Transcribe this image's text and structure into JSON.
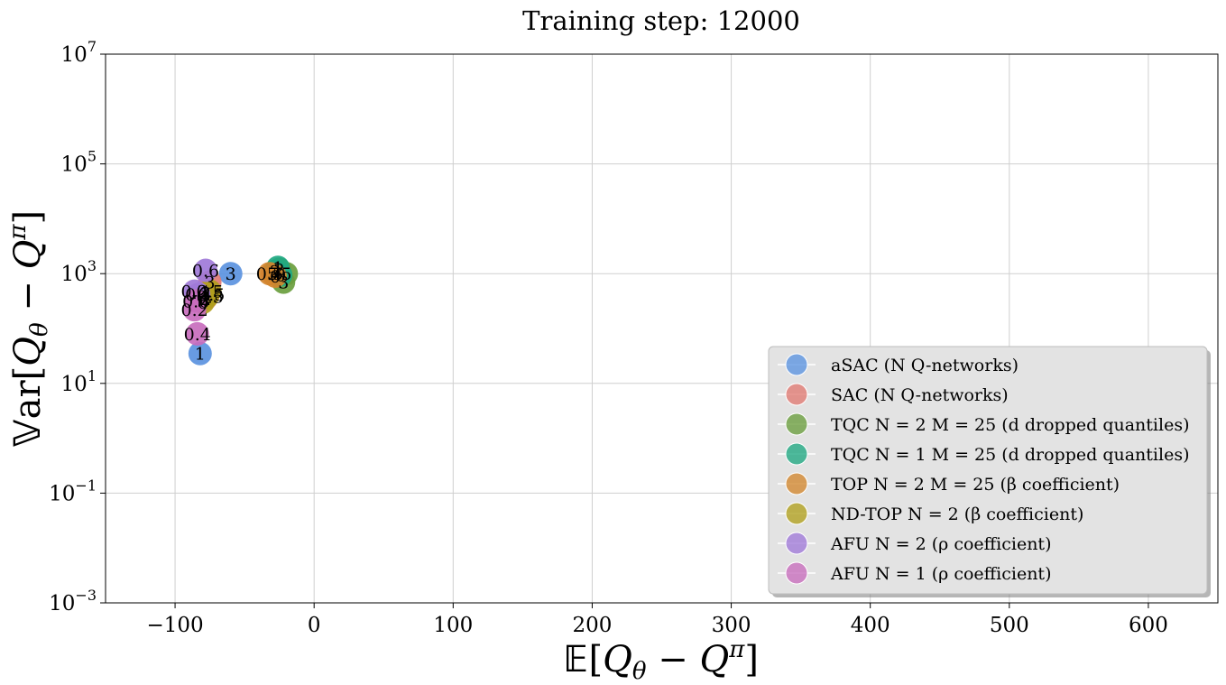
{
  "chart_data": {
    "type": "scatter",
    "title": "Training step: 12000",
    "xlabel": "𝔼[Q_θ − Q^π]",
    "ylabel": "𝕍ar[Q_θ − Q^π]",
    "xlim": [
      -150,
      650
    ],
    "ylim": [
      0.001,
      10000000
    ],
    "yscale": "log",
    "grid": true,
    "legend_position": "lower-right",
    "x_ticks": [
      -100,
      0,
      100,
      200,
      300,
      400,
      500,
      600
    ],
    "x_tick_labels": [
      "−100",
      "0",
      "100",
      "200",
      "300",
      "400",
      "500",
      "600"
    ],
    "y_ticks": [
      0.001,
      0.1,
      10,
      1000,
      100000,
      10000000
    ],
    "y_tick_base": [
      "10",
      "10",
      "10",
      "10",
      "10",
      "10"
    ],
    "y_tick_exp": [
      "−3",
      "−1",
      "1",
      "3",
      "5",
      "7"
    ],
    "series": [
      {
        "name": "aSAC (N Q-networks)",
        "color": "#5b93e0",
        "points": [
          {
            "x": -82,
            "y": 35,
            "label": "1"
          },
          {
            "x": -60,
            "y": 1000,
            "label": "3"
          },
          {
            "x": -78,
            "y": 450,
            "label": "2"
          }
        ]
      },
      {
        "name": "SAC (N Q-networks)",
        "color": "#e07a72",
        "points": [
          {
            "x": -75,
            "y": 700,
            "label": "3"
          },
          {
            "x": -78,
            "y": 350,
            "label": "2"
          },
          {
            "x": -30,
            "y": 1000,
            "label": "5"
          }
        ]
      },
      {
        "name": "TQC N = 2 M = 25 (d dropped quantiles)",
        "color": "#6a9e3e",
        "points": [
          {
            "x": -22,
            "y": 700,
            "label": "3"
          },
          {
            "x": -20,
            "y": 1000,
            "label": "5"
          },
          {
            "x": -25,
            "y": 1200,
            "label": "2"
          }
        ]
      },
      {
        "name": "TQC N = 1 M = 25 (d dropped quantiles)",
        "color": "#1fa882",
        "points": [
          {
            "x": -28,
            "y": 1100,
            "label": "2"
          },
          {
            "x": -24,
            "y": 950,
            "label": "0"
          },
          {
            "x": -26,
            "y": 1300,
            "label": "1"
          }
        ]
      },
      {
        "name": "TOP N = 2 M = 25 (β coefficient)",
        "color": "#d2862e",
        "points": [
          {
            "x": -32,
            "y": 1000,
            "label": "0.5"
          },
          {
            "x": -76,
            "y": 420,
            "label": "-0.5"
          },
          {
            "x": -28,
            "y": 900,
            "label": "0"
          }
        ]
      },
      {
        "name": "ND-TOP N = 2 (β coefficient)",
        "color": "#b1a01e",
        "points": [
          {
            "x": -75,
            "y": 480,
            "label": "0.5"
          },
          {
            "x": -80,
            "y": 300,
            "label": "0"
          },
          {
            "x": -77,
            "y": 380,
            "label": "-0.5"
          }
        ]
      },
      {
        "name": "AFU N = 2 (ρ coefficient)",
        "color": "#a07ad8",
        "points": [
          {
            "x": -78,
            "y": 1150,
            "label": "0.6"
          },
          {
            "x": -86,
            "y": 480,
            "label": "0.2"
          },
          {
            "x": -83,
            "y": 420,
            "label": "0.4"
          }
        ]
      },
      {
        "name": "AFU N = 1 (ρ coefficient)",
        "color": "#c86dbd",
        "points": [
          {
            "x": -84,
            "y": 80,
            "label": "0.4"
          },
          {
            "x": -86,
            "y": 220,
            "label": "0.2"
          },
          {
            "x": -85,
            "y": 320,
            "label": "0.6"
          }
        ]
      }
    ]
  }
}
